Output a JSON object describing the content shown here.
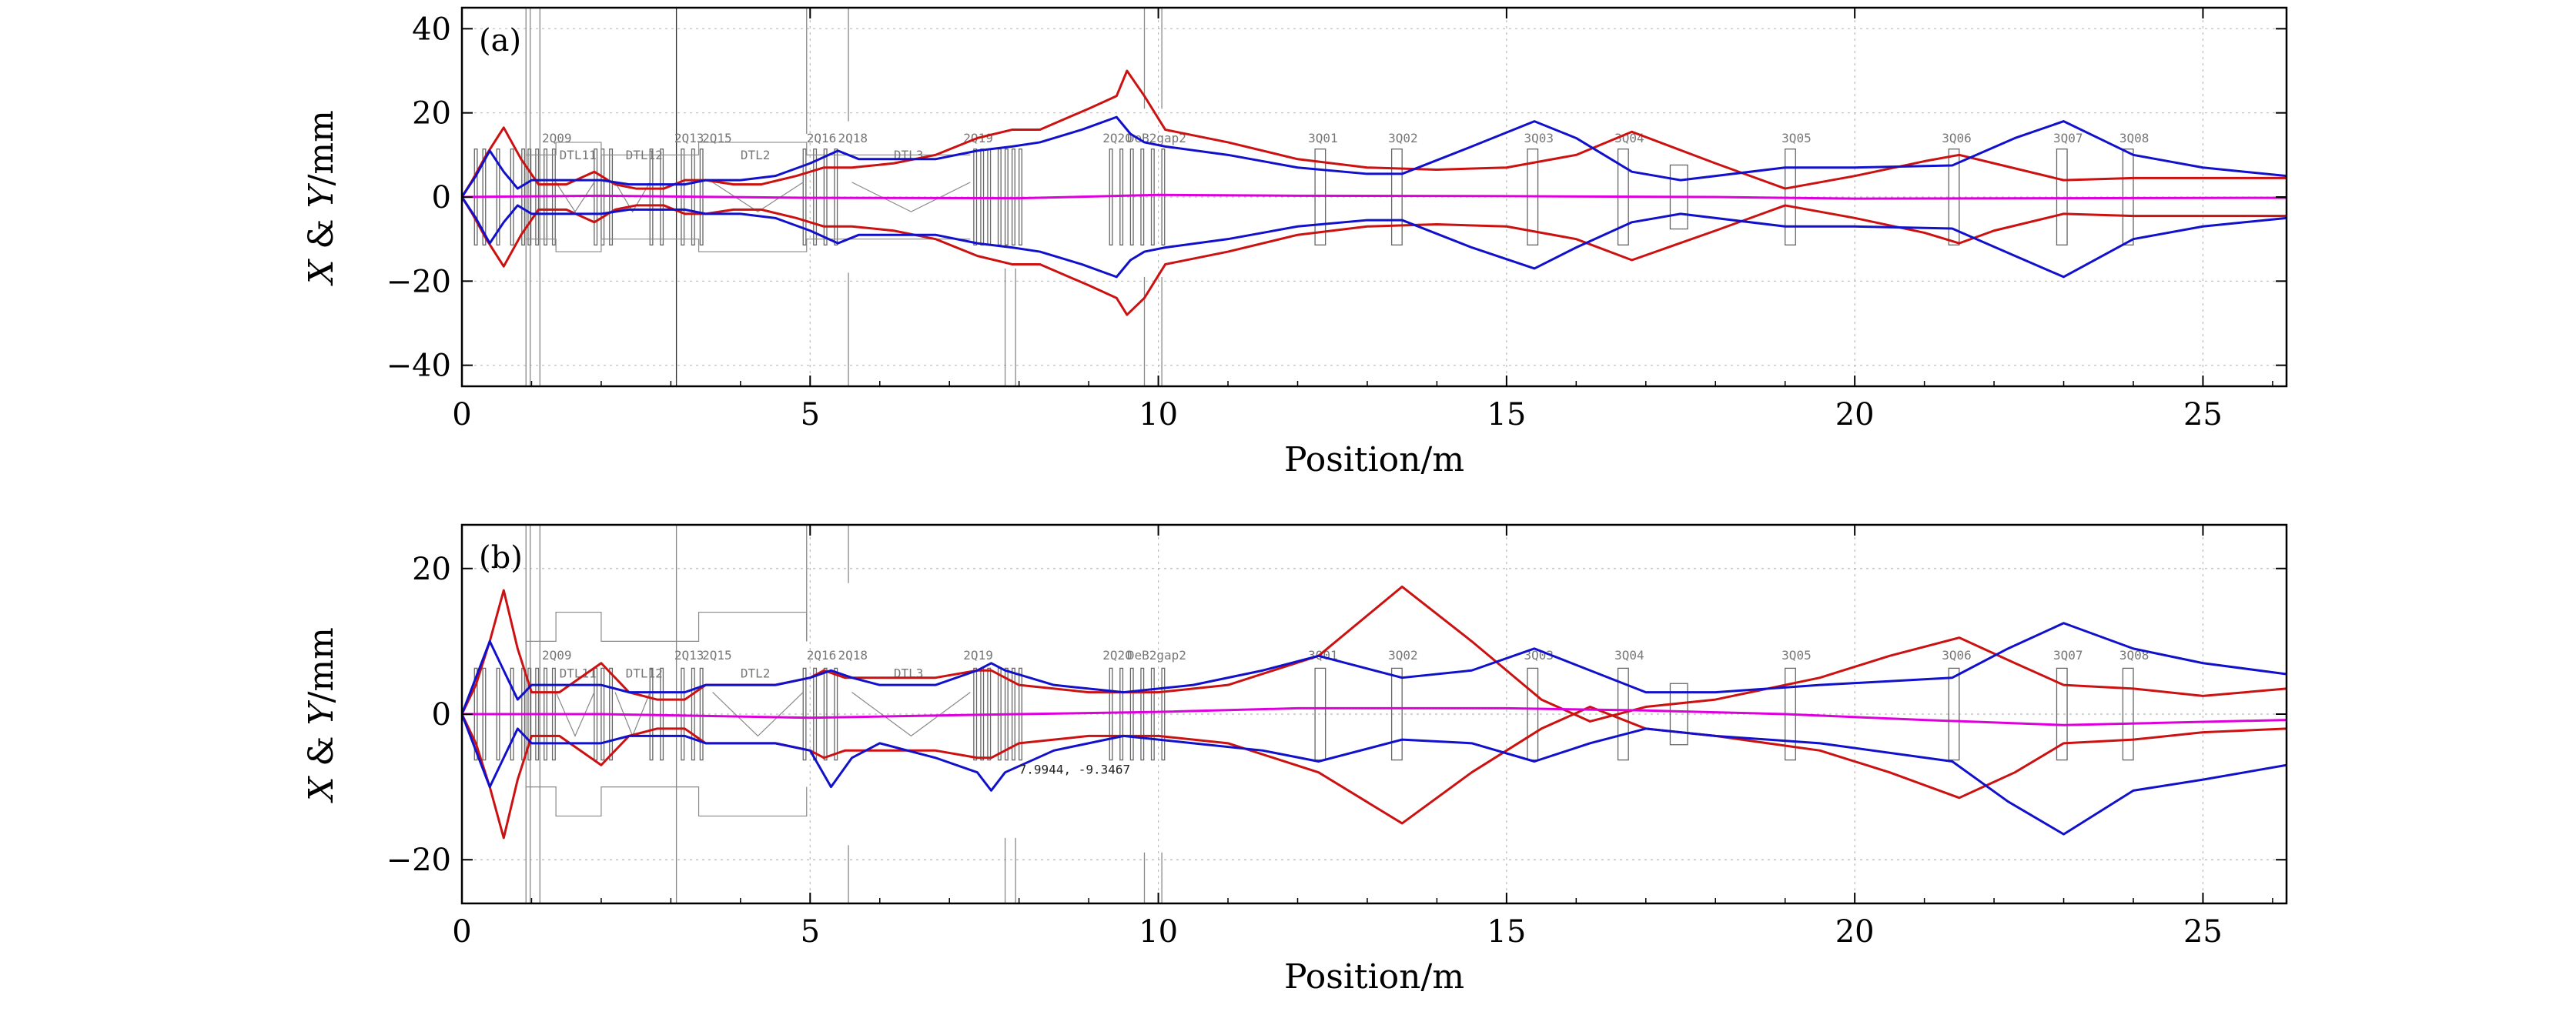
{
  "chart_data": [
    {
      "type": "line",
      "panel_label": "(a)",
      "xlabel": "Position/m",
      "ylabel_parts": [
        "X",
        " & ",
        "Y",
        "/mm"
      ],
      "xlim": [
        0,
        26.2
      ],
      "ylim": [
        -45,
        45
      ],
      "xticks": [
        0,
        5,
        10,
        15,
        20,
        25
      ],
      "xtick_labels": [
        "0",
        "5",
        "10",
        "15",
        "20",
        "25"
      ],
      "yticks": [
        40,
        20,
        0,
        -20,
        -40
      ],
      "ytick_labels": [
        "40",
        "20",
        "0",
        "−20",
        "−40"
      ],
      "grid": true,
      "element_labels": [
        {
          "text": "2Q09",
          "x": 1.15,
          "y": 13
        },
        {
          "text": "DTL11",
          "x": 1.4,
          "y": 9
        },
        {
          "text": "DTL12",
          "x": 2.35,
          "y": 9
        },
        {
          "text": "2Q13",
          "x": 3.05,
          "y": 13
        },
        {
          "text": "2Q15",
          "x": 3.45,
          "y": 13
        },
        {
          "text": "DTL2",
          "x": 4.0,
          "y": 9
        },
        {
          "text": "2Q16",
          "x": 4.95,
          "y": 13
        },
        {
          "text": "2Q18",
          "x": 5.4,
          "y": 13
        },
        {
          "text": "DTL3",
          "x": 6.2,
          "y": 9
        },
        {
          "text": "2Q19",
          "x": 7.2,
          "y": 13
        },
        {
          "text": "2Q20",
          "x": 9.2,
          "y": 13
        },
        {
          "text": "DeB2gap2",
          "x": 9.55,
          "y": 13
        },
        {
          "text": "3Q01",
          "x": 12.15,
          "y": 13
        },
        {
          "text": "3Q02",
          "x": 13.3,
          "y": 13
        },
        {
          "text": "3Q03",
          "x": 15.25,
          "y": 13
        },
        {
          "text": "3Q04",
          "x": 16.55,
          "y": 13
        },
        {
          "text": "3Q05",
          "x": 18.95,
          "y": 13
        },
        {
          "text": "3Q06",
          "x": 21.25,
          "y": 13
        },
        {
          "text": "3Q07",
          "x": 22.85,
          "y": 13
        },
        {
          "text": "3Q08",
          "x": 23.8,
          "y": 13
        }
      ],
      "series": [
        {
          "name": "envelope-red-upper",
          "color": "#cc1111",
          "x": [
            0,
            0.15,
            0.35,
            0.6,
            0.85,
            1.1,
            1.5,
            1.9,
            2.2,
            2.5,
            2.9,
            3.2,
            3.5,
            3.9,
            4.3,
            4.8,
            5.2,
            5.6,
            6.2,
            6.8,
            7.4,
            7.9,
            8.3,
            9.0,
            9.4,
            9.55,
            9.8,
            10.1,
            11.0,
            12.0,
            13.0,
            14.0,
            15.0,
            16.0,
            16.8,
            18.0,
            19.0,
            20.0,
            21.0,
            21.5,
            22.0,
            23.0,
            24.0,
            25.0,
            26.2
          ],
          "y": [
            0,
            4,
            10,
            16.5,
            9,
            3,
            3,
            6,
            3,
            2,
            2,
            4,
            4,
            3,
            3,
            5,
            7,
            7,
            8,
            10,
            14,
            16,
            16,
            21,
            24,
            30,
            24,
            16,
            13,
            9,
            7,
            6.5,
            7,
            10,
            15.5,
            8,
            2,
            5,
            8.5,
            10,
            8,
            4,
            4.5,
            4.5,
            4.5
          ]
        },
        {
          "name": "envelope-red-lower",
          "color": "#cc1111",
          "x": [
            0,
            0.15,
            0.35,
            0.6,
            0.85,
            1.1,
            1.5,
            1.9,
            2.2,
            2.5,
            2.9,
            3.2,
            3.5,
            3.9,
            4.3,
            4.8,
            5.2,
            5.6,
            6.2,
            6.8,
            7.4,
            7.9,
            8.3,
            9.0,
            9.4,
            9.55,
            9.8,
            10.1,
            11.0,
            12.0,
            13.0,
            14.0,
            15.0,
            16.0,
            16.8,
            18.0,
            19.0,
            20.0,
            21.0,
            21.5,
            22.0,
            23.0,
            24.0,
            25.0,
            26.2
          ],
          "y": [
            0,
            -4,
            -10,
            -16.5,
            -9,
            -3,
            -3,
            -6,
            -3,
            -2,
            -2,
            -4,
            -4,
            -3,
            -3,
            -5,
            -7,
            -7,
            -8,
            -10,
            -14,
            -16,
            -16,
            -21,
            -24,
            -28,
            -24,
            -16,
            -13,
            -9,
            -7,
            -6.5,
            -7,
            -10,
            -15,
            -8,
            -2,
            -5,
            -8.5,
            -11,
            -8,
            -4,
            -4.5,
            -4.5,
            -4.5
          ]
        },
        {
          "name": "envelope-blue-upper",
          "color": "#1111cc",
          "x": [
            0,
            0.2,
            0.4,
            0.6,
            0.8,
            1.0,
            1.4,
            2.0,
            2.4,
            2.8,
            3.2,
            3.5,
            4.0,
            4.5,
            5.0,
            5.4,
            5.7,
            6.2,
            6.8,
            7.4,
            7.9,
            8.3,
            8.9,
            9.4,
            9.6,
            9.8,
            10.1,
            11.0,
            12.0,
            13.0,
            13.5,
            14.5,
            15.4,
            16.0,
            16.8,
            17.5,
            19.0,
            20.0,
            21.4,
            22.3,
            23.0,
            24.0,
            25.0,
            26.2
          ],
          "y": [
            0,
            5,
            11,
            6,
            2,
            4,
            4,
            4,
            3,
            3,
            3,
            4,
            4,
            5,
            8,
            11,
            9,
            9,
            9,
            11,
            12,
            13,
            16,
            19,
            15,
            13,
            12,
            10,
            7,
            5.5,
            5.5,
            12,
            18,
            14,
            6,
            4,
            7,
            7,
            7.5,
            14,
            18,
            10,
            7,
            5
          ]
        },
        {
          "name": "envelope-blue-lower",
          "color": "#1111cc",
          "x": [
            0,
            0.2,
            0.4,
            0.6,
            0.8,
            1.0,
            1.4,
            2.0,
            2.4,
            2.8,
            3.2,
            3.5,
            4.0,
            4.5,
            5.0,
            5.4,
            5.7,
            6.2,
            6.8,
            7.4,
            7.9,
            8.3,
            8.9,
            9.4,
            9.6,
            9.8,
            10.1,
            11.0,
            12.0,
            13.0,
            13.5,
            14.5,
            15.4,
            16.0,
            16.8,
            17.5,
            19.0,
            20.0,
            21.4,
            22.3,
            23.0,
            24.0,
            25.0,
            26.2
          ],
          "y": [
            0,
            -5,
            -11,
            -6,
            -2,
            -4,
            -4,
            -4,
            -3,
            -3,
            -3,
            -4,
            -4,
            -5,
            -8,
            -11,
            -9,
            -9,
            -9,
            -11,
            -12,
            -13,
            -16,
            -19,
            -15,
            -13,
            -12,
            -10,
            -7,
            -5.5,
            -5.5,
            -12,
            -17,
            -12,
            -6,
            -4,
            -7,
            -7,
            -7.5,
            -14,
            -19,
            -10,
            -7,
            -5
          ]
        },
        {
          "name": "centroid-magenta",
          "color": "#dd00dd",
          "x": [
            0,
            2,
            5,
            8,
            10,
            12,
            15,
            18,
            20,
            23,
            26.2
          ],
          "y": [
            0,
            0.3,
            -0.2,
            -0.3,
            0.5,
            0.3,
            0.2,
            0,
            -0.4,
            -0.3,
            -0.2
          ]
        }
      ]
    },
    {
      "type": "line",
      "panel_label": "(b)",
      "xlabel": "Position/m",
      "ylabel_parts": [
        "X",
        " & ",
        "Y",
        "/mm"
      ],
      "xlim": [
        0,
        26.2
      ],
      "ylim": [
        -26,
        26
      ],
      "xticks": [
        0,
        5,
        10,
        15,
        20,
        25
      ],
      "xtick_labels": [
        "0",
        "5",
        "10",
        "15",
        "20",
        "25"
      ],
      "yticks": [
        20,
        0,
        -20
      ],
      "ytick_labels": [
        "20",
        "0",
        "−20"
      ],
      "grid": true,
      "annotation": {
        "text": "7.9944, -9.3467",
        "x": 8.0,
        "y": -8.2
      },
      "element_labels": [
        {
          "text": "2Q09",
          "x": 1.15,
          "y": 7.5
        },
        {
          "text": "DTL11",
          "x": 1.4,
          "y": 5
        },
        {
          "text": "DTL12",
          "x": 2.35,
          "y": 5
        },
        {
          "text": "2Q13",
          "x": 3.05,
          "y": 7.5
        },
        {
          "text": "2Q15",
          "x": 3.45,
          "y": 7.5
        },
        {
          "text": "DTL2",
          "x": 4.0,
          "y": 5
        },
        {
          "text": "2Q16",
          "x": 4.95,
          "y": 7.5
        },
        {
          "text": "2Q18",
          "x": 5.4,
          "y": 7.5
        },
        {
          "text": "DTL3",
          "x": 6.2,
          "y": 5
        },
        {
          "text": "2Q19",
          "x": 7.2,
          "y": 7.5
        },
        {
          "text": "2Q20",
          "x": 9.2,
          "y": 7.5
        },
        {
          "text": "DeB2gap2",
          "x": 9.55,
          "y": 7.5
        },
        {
          "text": "3Q01",
          "x": 12.15,
          "y": 7.5
        },
        {
          "text": "3Q02",
          "x": 13.3,
          "y": 7.5
        },
        {
          "text": "3Q03",
          "x": 15.25,
          "y": 7.5
        },
        {
          "text": "3Q04",
          "x": 16.55,
          "y": 7.5
        },
        {
          "text": "3Q05",
          "x": 18.95,
          "y": 7.5
        },
        {
          "text": "3Q06",
          "x": 21.25,
          "y": 7.5
        },
        {
          "text": "3Q07",
          "x": 22.85,
          "y": 7.5
        },
        {
          "text": "3Q08",
          "x": 23.8,
          "y": 7.5
        }
      ],
      "series": [
        {
          "name": "envelope-red-upper",
          "color": "#cc1111",
          "x": [
            0,
            0.2,
            0.4,
            0.6,
            0.8,
            1.0,
            1.4,
            2.0,
            2.4,
            2.8,
            3.2,
            3.5,
            4.0,
            4.5,
            5.0,
            5.2,
            5.5,
            6.0,
            6.8,
            7.4,
            7.6,
            8.0,
            9.0,
            10.0,
            11.0,
            12.3,
            13.5,
            14.5,
            15.5,
            16.2,
            17.0,
            18.0,
            19.5,
            20.5,
            21.5,
            22.3,
            23.0,
            24.0,
            25.0,
            26.2
          ],
          "y": [
            0,
            4,
            10,
            17,
            9,
            3,
            3,
            7,
            3,
            2,
            2,
            4,
            4,
            4,
            5,
            6,
            5,
            5,
            5,
            6,
            6,
            4,
            3,
            3,
            4,
            8,
            17.5,
            10,
            2,
            -1,
            1,
            2,
            5,
            8,
            10.5,
            7,
            4,
            3.5,
            2.5,
            3.5
          ]
        },
        {
          "name": "envelope-red-lower",
          "color": "#cc1111",
          "x": [
            0,
            0.2,
            0.4,
            0.6,
            0.8,
            1.0,
            1.4,
            2.0,
            2.4,
            2.8,
            3.2,
            3.5,
            4.0,
            4.5,
            5.0,
            5.2,
            5.5,
            6.0,
            6.8,
            7.4,
            7.6,
            8.0,
            9.0,
            10.0,
            11.0,
            12.3,
            13.5,
            14.5,
            15.5,
            16.2,
            17.0,
            18.0,
            19.5,
            20.5,
            21.5,
            22.3,
            23.0,
            24.0,
            25.0,
            26.2
          ],
          "y": [
            0,
            -4,
            -10,
            -17,
            -9,
            -3,
            -3,
            -7,
            -3,
            -2,
            -2,
            -4,
            -4,
            -4,
            -5,
            -6,
            -5,
            -5,
            -5,
            -6,
            -6,
            -4,
            -3,
            -3,
            -4,
            -8,
            -15,
            -8,
            -2,
            1,
            -2,
            -3,
            -5,
            -8,
            -11.5,
            -8,
            -4,
            -3.5,
            -2.5,
            -2
          ]
        },
        {
          "name": "envelope-blue-upper",
          "color": "#1111cc",
          "x": [
            0,
            0.2,
            0.4,
            0.6,
            0.8,
            1.0,
            1.4,
            2.0,
            2.4,
            2.8,
            3.2,
            3.5,
            4.0,
            4.5,
            5.0,
            5.3,
            5.6,
            6.0,
            6.8,
            7.4,
            7.6,
            7.8,
            8.5,
            9.5,
            10.5,
            11.5,
            12.3,
            13.5,
            14.5,
            15.4,
            16.2,
            17.0,
            18.0,
            19.5,
            21.4,
            22.2,
            23.0,
            24.0,
            25.0,
            26.2
          ],
          "y": [
            0,
            5,
            10,
            6,
            2,
            4,
            4,
            4,
            3,
            3,
            3,
            4,
            4,
            4,
            5,
            6,
            5,
            4,
            4,
            6,
            7,
            6,
            4,
            3,
            4,
            6,
            8,
            5,
            6,
            9,
            6,
            3,
            3,
            4,
            5,
            9,
            12.5,
            9,
            7,
            5.5
          ]
        },
        {
          "name": "envelope-blue-lower",
          "color": "#1111cc",
          "x": [
            0,
            0.2,
            0.4,
            0.6,
            0.8,
            1.0,
            1.4,
            2.0,
            2.4,
            2.8,
            3.2,
            3.5,
            4.0,
            4.5,
            5.0,
            5.3,
            5.6,
            6.0,
            6.8,
            7.4,
            7.6,
            7.8,
            8.5,
            9.5,
            10.5,
            11.5,
            12.3,
            13.5,
            14.5,
            15.4,
            16.2,
            17.0,
            18.0,
            19.5,
            21.4,
            22.2,
            23.0,
            24.0,
            25.0,
            26.2
          ],
          "y": [
            0,
            -5,
            -10,
            -6,
            -2,
            -4,
            -4,
            -4,
            -3,
            -3,
            -3,
            -4,
            -4,
            -4,
            -5,
            -10,
            -6,
            -4,
            -6,
            -8,
            -10.5,
            -8,
            -5,
            -3,
            -4,
            -5,
            -6.5,
            -3.5,
            -4,
            -6.5,
            -4,
            -2,
            -3,
            -4,
            -6.5,
            -12,
            -16.5,
            -10.5,
            -9,
            -7
          ]
        },
        {
          "name": "centroid-magenta",
          "color": "#dd00dd",
          "x": [
            0,
            2,
            5,
            8,
            10,
            12,
            15,
            17,
            19,
            21,
            23,
            26.2
          ],
          "y": [
            0,
            0,
            -0.5,
            0,
            0.3,
            0.8,
            0.8,
            0.5,
            0,
            -0.8,
            -1.5,
            -0.8
          ]
        }
      ]
    }
  ]
}
